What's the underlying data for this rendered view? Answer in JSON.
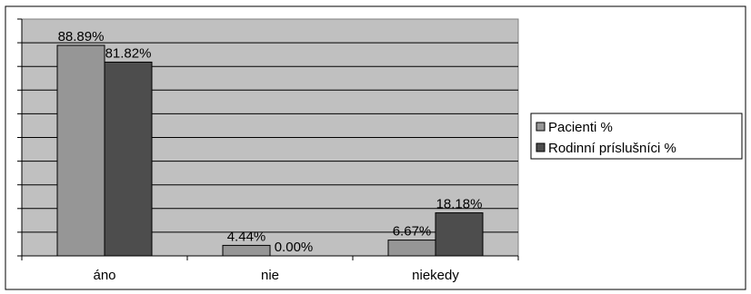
{
  "chart_data": {
    "type": "bar",
    "categories": [
      "áno",
      "nie",
      "niekedy"
    ],
    "series": [
      {
        "name": "Pacienti %",
        "values": [
          88.89,
          4.44,
          6.67
        ],
        "labels": [
          "88.89%",
          "4.44%",
          "6.67%"
        ],
        "color": "#969696"
      },
      {
        "name": "Rodinní príslušníci %",
        "values": [
          81.82,
          0.0,
          18.18
        ],
        "labels": [
          "81.82%",
          "0.00%",
          "18.18%"
        ],
        "color": "#4d4d4d"
      }
    ],
    "ylim": [
      0,
      100
    ],
    "ytick_step": 10,
    "grid": true,
    "plot_background": "#c0c0c0",
    "legend_position": "right"
  }
}
